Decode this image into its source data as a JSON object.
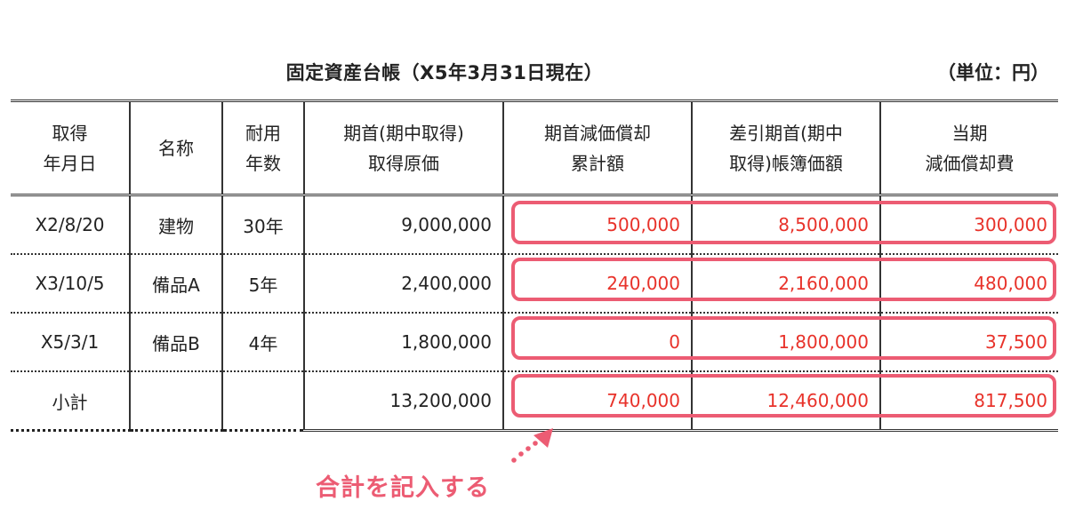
{
  "header": {
    "title": "固定資産台帳（X5年3月31日現在）",
    "unit": "（単位：円）"
  },
  "table": {
    "columns": [
      [
        "取得",
        "年月日"
      ],
      [
        "名称"
      ],
      [
        "耐用",
        "年数"
      ],
      [
        "期首(期中取得)",
        "取得原価"
      ],
      [
        "期首減価償却",
        "累計額"
      ],
      [
        "差引期首(期中",
        "取得)帳簿価額"
      ],
      [
        "当期",
        "減価償却費"
      ]
    ],
    "rows": [
      {
        "date": "X2/8/20",
        "name": "建物",
        "life": "30年",
        "cost": "9,000,000",
        "accum": "500,000",
        "book": "8,500,000",
        "dep": "300,000"
      },
      {
        "date": "X3/10/5",
        "name": "備品A",
        "life": "5年",
        "cost": "2,400,000",
        "accum": "240,000",
        "book": "2,160,000",
        "dep": "480,000"
      },
      {
        "date": "X5/3/1",
        "name": "備品B",
        "life": "4年",
        "cost": "1,800,000",
        "accum": "0",
        "book": "1,800,000",
        "dep": "37,500"
      }
    ],
    "subtotal": {
      "label": "小計",
      "cost": "13,200,000",
      "accum": "740,000",
      "book": "12,460,000",
      "dep": "817,500"
    }
  },
  "annotation": "合計を記入する",
  "colors": {
    "highlight": "#ec5c73",
    "value_red": "#e8322a",
    "text": "#222222"
  }
}
